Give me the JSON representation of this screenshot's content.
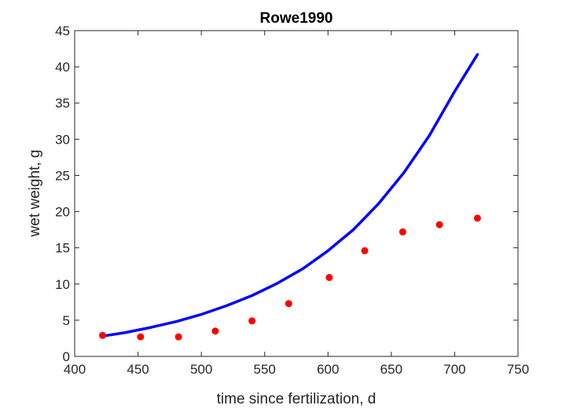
{
  "chart_data": {
    "type": "line",
    "title": "Rowe1990",
    "xlabel": "time since fertilization, d",
    "ylabel": "wet weight, g",
    "xlim": [
      400,
      750
    ],
    "ylim": [
      0,
      45
    ],
    "xticks": [
      "400",
      "450",
      "500",
      "550",
      "600",
      "650",
      "700",
      "750"
    ],
    "yticks": [
      "0",
      "5",
      "10",
      "15",
      "20",
      "25",
      "30",
      "35",
      "40",
      "45"
    ],
    "grid": false,
    "legend": "none",
    "series": [
      {
        "kind": "line",
        "color": "#0000ff",
        "x": [
          422,
          440,
          460,
          480,
          500,
          520,
          540,
          560,
          580,
          600,
          620,
          640,
          660,
          680,
          700,
          718
        ],
        "y": [
          2.8,
          3.3,
          4.0,
          4.8,
          5.8,
          7.0,
          8.4,
          10.1,
          12.1,
          14.6,
          17.5,
          21.1,
          25.4,
          30.5,
          36.6,
          41.7
        ]
      },
      {
        "kind": "scatter",
        "color": "#ff0000",
        "x": [
          422,
          452,
          482,
          511,
          540,
          569,
          601,
          629,
          659,
          688,
          718
        ],
        "y": [
          2.9,
          2.7,
          2.7,
          3.5,
          4.9,
          7.3,
          10.9,
          14.6,
          17.2,
          18.2,
          19.1
        ]
      }
    ]
  }
}
